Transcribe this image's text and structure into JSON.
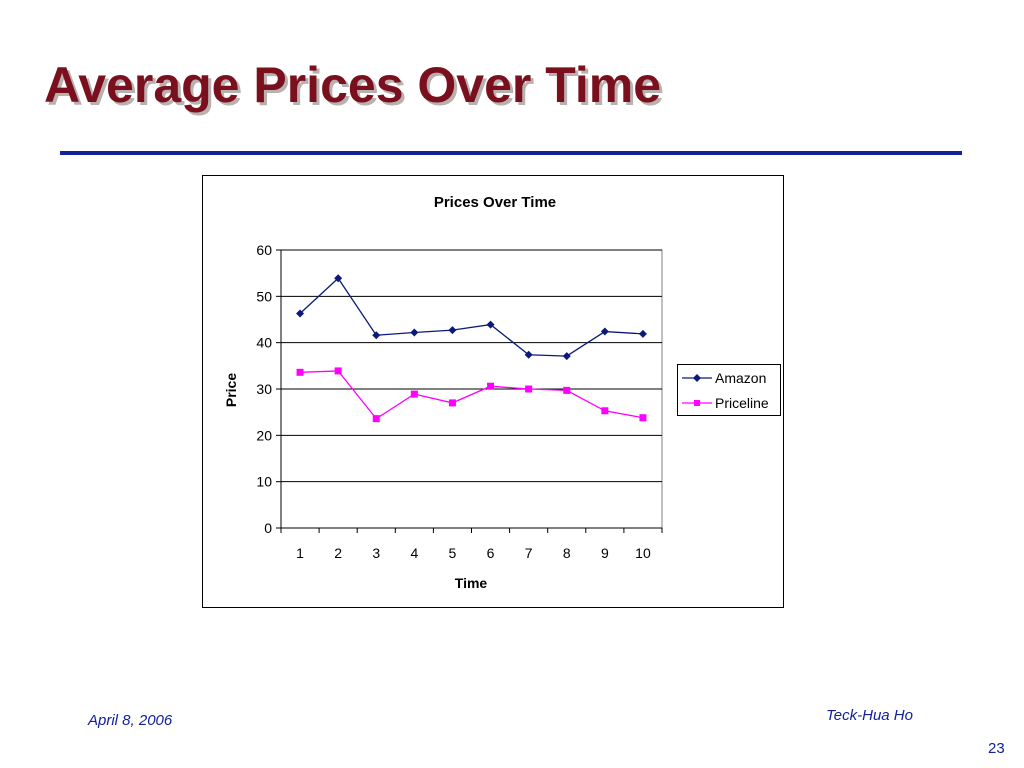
{
  "slide": {
    "title": "Average Prices Over Time",
    "date": "April 8, 2006",
    "author": "Teck-Hua Ho",
    "page_number": "23"
  },
  "chart_data": {
    "type": "line",
    "title": "Prices Over Time",
    "xlabel": "Time",
    "ylabel": "Price",
    "categories": [
      "1",
      "2",
      "3",
      "4",
      "5",
      "6",
      "7",
      "8",
      "9",
      "10"
    ],
    "ylim": [
      0,
      60
    ],
    "yticks": [
      0,
      10,
      20,
      30,
      40,
      50,
      60
    ],
    "grid": true,
    "legend_position": "right",
    "series": [
      {
        "name": "Amazon",
        "color": "#0b1a7a",
        "marker": "diamond",
        "values": [
          46.3,
          53.9,
          41.6,
          42.2,
          42.7,
          43.9,
          37.4,
          37.1,
          42.4,
          41.9
        ]
      },
      {
        "name": "Priceline",
        "color": "#ff00ff",
        "marker": "square",
        "values": [
          33.6,
          33.9,
          23.6,
          28.9,
          27.0,
          30.6,
          30.0,
          29.7,
          25.3,
          23.8
        ]
      }
    ]
  }
}
